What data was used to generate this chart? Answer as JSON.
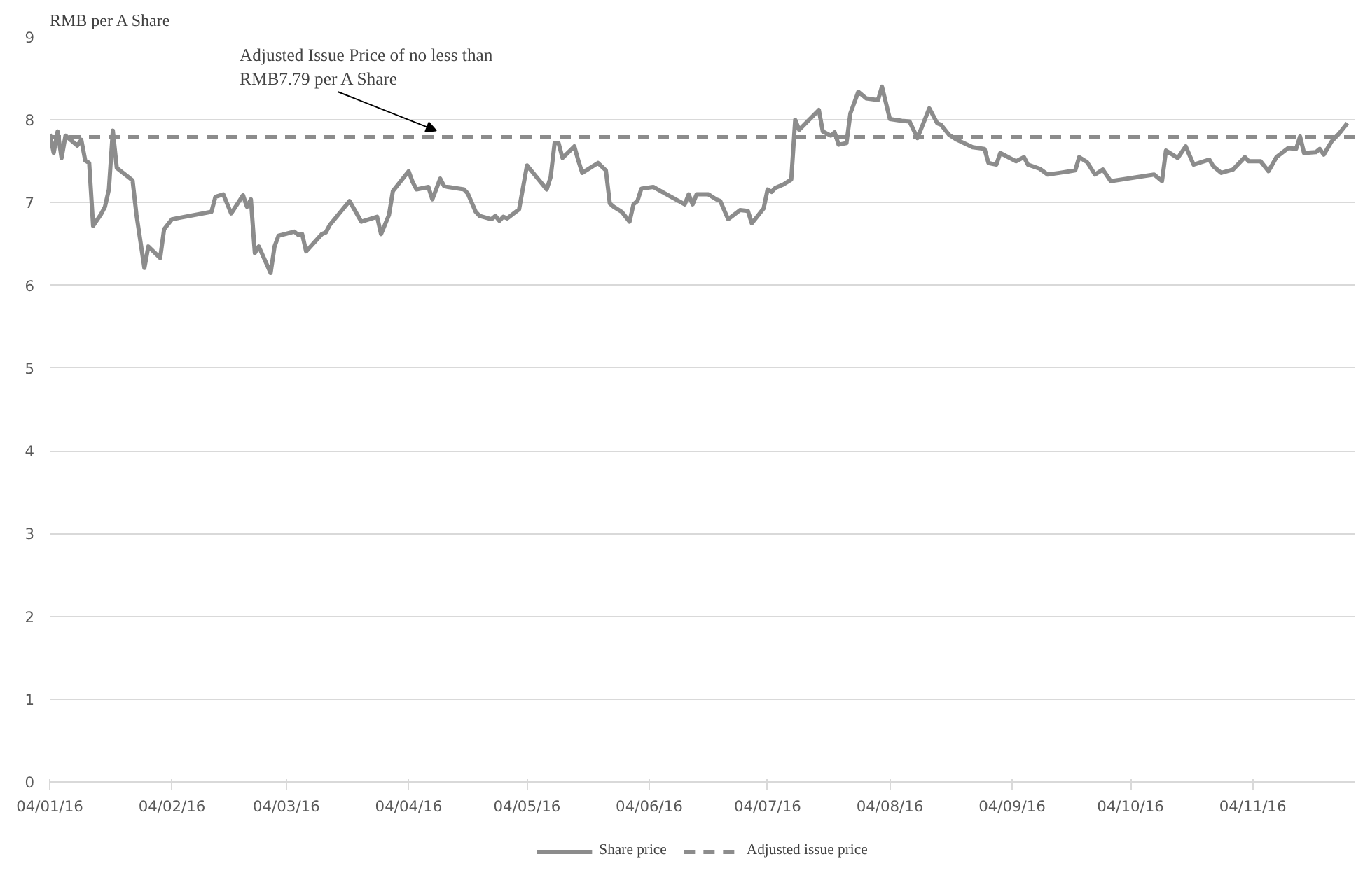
{
  "chart_data": {
    "type": "line",
    "ylabel": "RMB per A Share",
    "annotations": [
      {
        "text": "Adjusted Issue Price of no less than\nRMB7.79 per A Share",
        "x": "2016-04-11",
        "y": 7.79
      }
    ],
    "series": [
      {
        "name": "Share price",
        "color": "#8c8c8c",
        "line_style": "solid",
        "x": [
          "2016-01-04",
          "2016-01-05",
          "2016-01-06",
          "2016-01-07",
          "2016-01-08",
          "2016-01-11",
          "2016-01-12",
          "2016-01-13",
          "2016-01-14",
          "2016-01-15",
          "2016-01-17",
          "2016-01-18",
          "2016-01-19",
          "2016-01-20",
          "2016-01-21",
          "2016-01-25",
          "2016-01-26",
          "2016-01-28",
          "2016-01-29",
          "2016-02-01",
          "2016-02-02",
          "2016-02-04",
          "2016-02-14",
          "2016-02-15",
          "2016-02-17",
          "2016-02-19",
          "2016-02-22",
          "2016-02-23",
          "2016-02-24",
          "2016-02-25",
          "2016-02-26",
          "2016-02-29",
          "2016-03-01",
          "2016-03-02",
          "2016-03-06",
          "2016-03-07",
          "2016-03-08",
          "2016-03-09",
          "2016-03-13",
          "2016-03-14",
          "2016-03-15",
          "2016-03-20",
          "2016-03-23",
          "2016-03-27",
          "2016-03-28",
          "2016-03-30",
          "2016-03-31",
          "2016-04-04",
          "2016-04-05",
          "2016-04-06",
          "2016-04-09",
          "2016-04-10",
          "2016-04-12",
          "2016-04-13",
          "2016-04-14",
          "2016-04-18",
          "2016-04-19",
          "2016-04-21",
          "2016-04-22",
          "2016-04-25",
          "2016-04-26",
          "2016-04-27",
          "2016-04-28",
          "2016-04-29",
          "2016-05-02",
          "2016-05-04",
          "2016-05-09",
          "2016-05-10",
          "2016-05-11",
          "2016-05-12",
          "2016-05-13",
          "2016-05-16",
          "2016-05-17",
          "2016-05-18",
          "2016-05-22",
          "2016-05-24",
          "2016-05-25",
          "2016-05-26",
          "2016-05-28",
          "2016-05-30",
          "2016-05-31",
          "2016-06-01",
          "2016-06-02",
          "2016-06-05",
          "2016-06-08",
          "2016-06-13",
          "2016-06-14",
          "2016-06-15",
          "2016-06-16",
          "2016-06-19",
          "2016-06-21",
          "2016-06-22",
          "2016-06-24",
          "2016-06-27",
          "2016-06-29",
          "2016-06-30",
          "2016-07-03",
          "2016-07-04",
          "2016-07-05",
          "2016-07-06",
          "2016-07-08",
          "2016-07-10",
          "2016-07-11",
          "2016-07-12",
          "2016-07-17",
          "2016-07-18",
          "2016-07-20",
          "2016-07-21",
          "2016-07-22",
          "2016-07-24",
          "2016-07-25",
          "2016-07-27",
          "2016-07-29",
          "2016-08-01",
          "2016-08-02",
          "2016-08-04",
          "2016-08-07",
          "2016-08-09",
          "2016-08-11",
          "2016-08-14",
          "2016-08-16",
          "2016-08-17",
          "2016-08-19",
          "2016-08-21",
          "2016-08-25",
          "2016-08-28",
          "2016-08-29",
          "2016-08-31",
          "2016-09-01",
          "2016-09-05",
          "2016-09-07",
          "2016-09-08",
          "2016-09-11",
          "2016-09-13",
          "2016-09-16",
          "2016-09-20",
          "2016-09-21",
          "2016-09-23",
          "2016-09-25",
          "2016-09-27",
          "2016-09-29",
          "2016-10-10",
          "2016-10-12",
          "2016-10-13",
          "2016-10-16",
          "2016-10-18",
          "2016-10-20",
          "2016-10-24",
          "2016-10-25",
          "2016-10-27",
          "2016-10-30",
          "2016-11-02",
          "2016-11-03",
          "2016-11-06",
          "2016-11-08",
          "2016-11-10",
          "2016-11-13",
          "2016-11-15",
          "2016-11-16",
          "2016-11-17",
          "2016-11-20",
          "2016-11-21",
          "2016-11-22",
          "2016-11-24",
          "2016-11-26",
          "2016-11-28"
        ],
        "values": [
          7.83,
          7.6,
          7.86,
          7.54,
          7.81,
          7.69,
          7.76,
          7.51,
          7.48,
          6.72,
          6.86,
          6.95,
          7.16,
          7.87,
          7.42,
          7.27,
          6.85,
          6.21,
          6.47,
          6.33,
          6.68,
          6.8,
          6.89,
          7.07,
          7.1,
          6.87,
          7.09,
          6.95,
          7.04,
          6.39,
          6.47,
          6.15,
          6.47,
          6.6,
          6.65,
          6.61,
          6.62,
          6.41,
          6.62,
          6.64,
          6.73,
          7.02,
          6.77,
          6.83,
          6.62,
          6.85,
          7.14,
          7.38,
          7.25,
          7.16,
          7.19,
          7.04,
          7.29,
          7.2,
          7.19,
          7.16,
          7.11,
          6.89,
          6.84,
          6.8,
          6.84,
          6.78,
          6.83,
          6.81,
          6.92,
          7.45,
          7.16,
          7.31,
          7.72,
          7.72,
          7.54,
          7.68,
          7.51,
          7.36,
          7.48,
          7.39,
          6.99,
          6.95,
          6.89,
          6.77,
          6.98,
          7.02,
          7.17,
          7.19,
          7.11,
          6.98,
          7.1,
          6.98,
          7.1,
          7.1,
          7.04,
          7.02,
          6.8,
          6.91,
          6.9,
          6.75,
          6.93,
          7.16,
          7.13,
          7.18,
          7.22,
          7.28,
          8.0,
          7.88,
          8.12,
          7.86,
          7.81,
          7.85,
          7.7,
          7.72,
          8.08,
          8.34,
          8.26,
          8.24,
          8.4,
          8.01,
          7.99,
          7.98,
          7.78,
          8.14,
          7.96,
          7.94,
          7.82,
          7.76,
          7.67,
          7.65,
          7.48,
          7.46,
          7.6,
          7.5,
          7.55,
          7.46,
          7.41,
          7.34,
          7.36,
          7.39,
          7.55,
          7.49,
          7.34,
          7.4,
          7.26,
          7.34,
          7.26,
          7.63,
          7.54,
          7.68,
          7.46,
          7.52,
          7.44,
          7.36,
          7.4,
          7.55,
          7.5,
          7.5,
          7.38,
          7.55,
          7.66,
          7.65,
          7.8,
          7.6,
          7.61,
          7.65,
          7.58,
          7.74,
          7.84,
          7.96
        ]
      },
      {
        "name": "Adjusted issue price",
        "color": "#8c8c8c",
        "line_style": "dashed",
        "x": [
          "2016-01-04",
          "2016-11-30"
        ],
        "values": [
          7.79,
          7.79
        ]
      }
    ],
    "xlim": [
      "2016-01-04",
      "2016-11-30"
    ],
    "xticks": [
      {
        "value": "2016-01-04",
        "label": "04/01/16"
      },
      {
        "value": "2016-02-04",
        "label": "04/02/16"
      },
      {
        "value": "2016-03-04",
        "label": "04/03/16"
      },
      {
        "value": "2016-04-04",
        "label": "04/04/16"
      },
      {
        "value": "2016-05-04",
        "label": "04/05/16"
      },
      {
        "value": "2016-06-04",
        "label": "04/06/16"
      },
      {
        "value": "2016-07-04",
        "label": "04/07/16"
      },
      {
        "value": "2016-08-04",
        "label": "04/08/16"
      },
      {
        "value": "2016-09-04",
        "label": "04/09/16"
      },
      {
        "value": "2016-10-04",
        "label": "04/10/16"
      },
      {
        "value": "2016-11-04",
        "label": "04/11/16"
      }
    ],
    "ylim": [
      0,
      9
    ],
    "yticks": [
      0,
      1,
      2,
      3,
      4,
      5,
      6,
      7,
      8,
      9
    ],
    "grid": "y",
    "legend": "bottom"
  }
}
